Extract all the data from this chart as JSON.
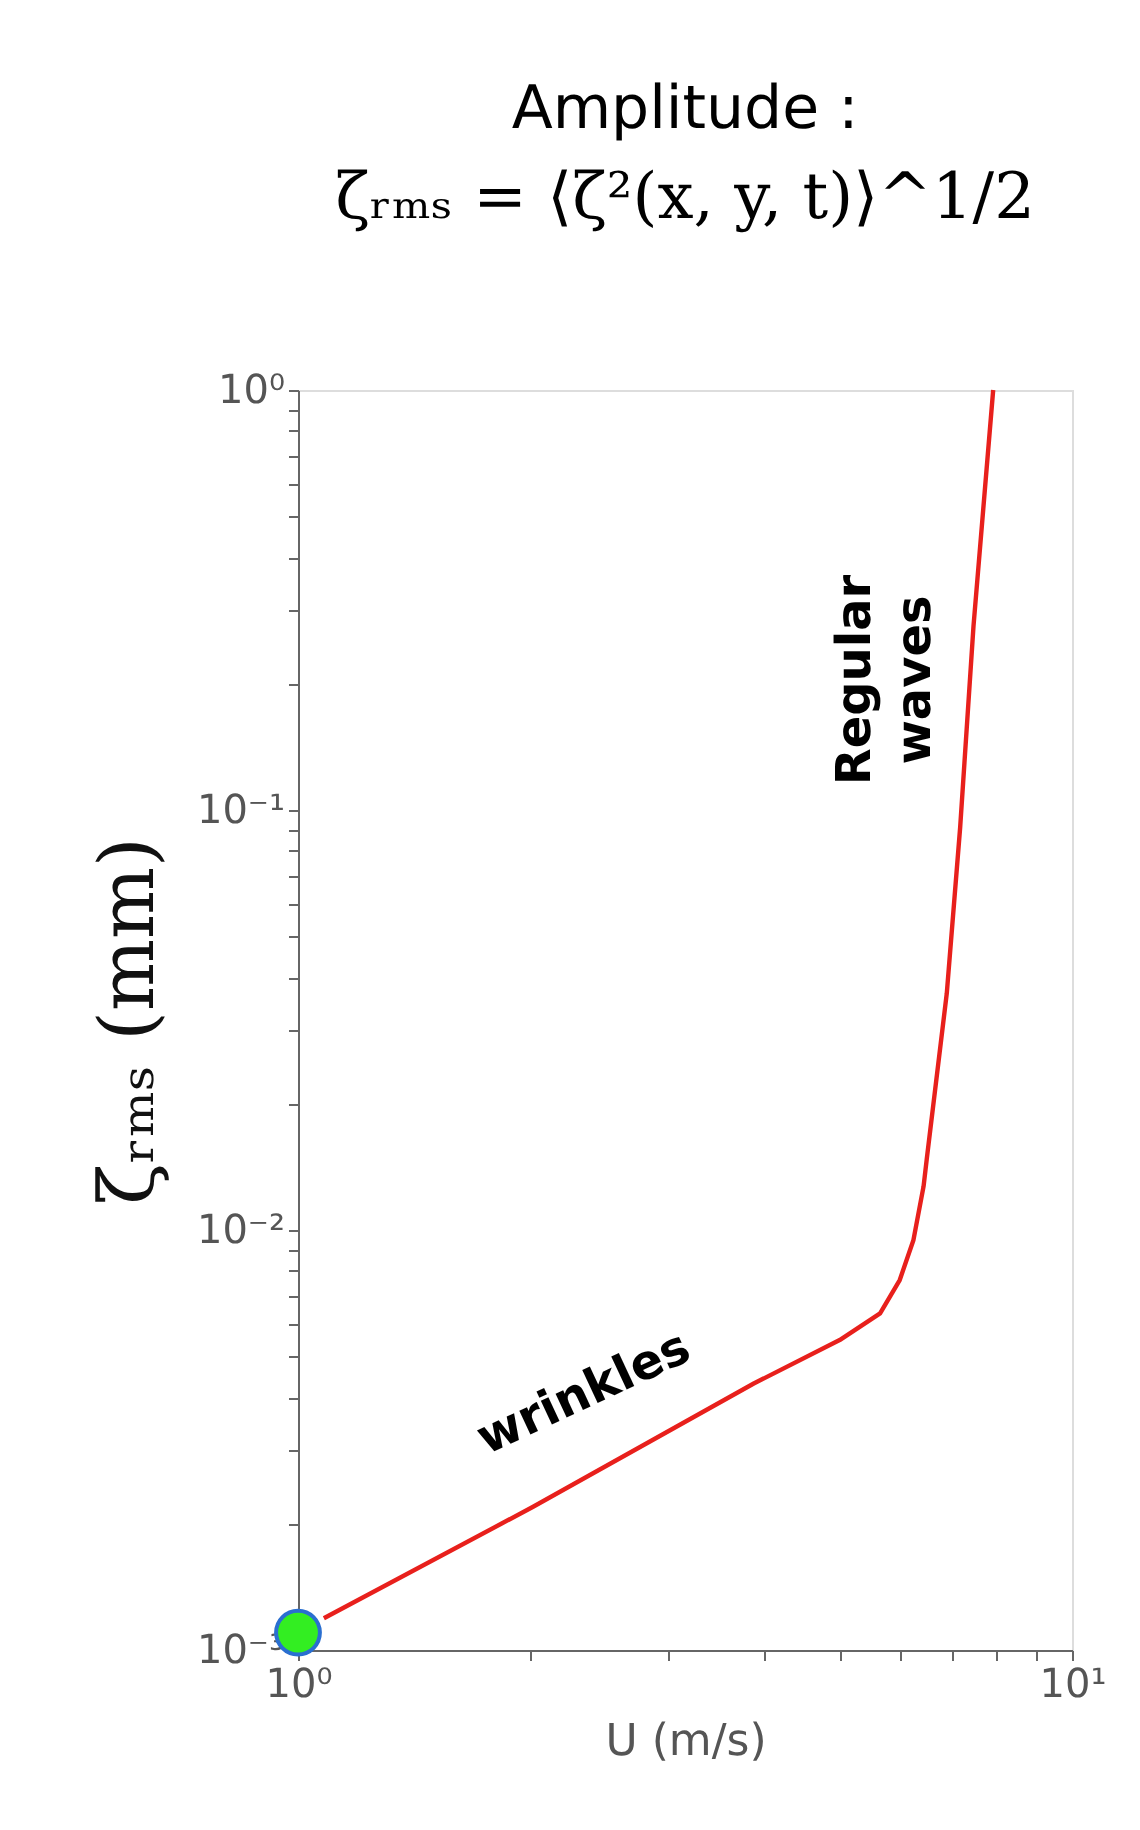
{
  "chart_data": {
    "type": "line",
    "title": "Amplitude :",
    "subtitle": "ζᵣₘₛ = ⟨ζ²(x, y, t)⟩^1/2",
    "xlabel": "U (m/s)",
    "ylabel": "ζᵣₘₛ (mm)",
    "log": "xy",
    "grid": false,
    "xlim": [
      1,
      10
    ],
    "ylim": [
      0.001,
      1
    ],
    "xticks": [
      {
        "value": 1,
        "label": "10⁰"
      },
      {
        "value": 2,
        "label": null
      },
      {
        "value": 3,
        "label": null
      },
      {
        "value": 4,
        "label": null
      },
      {
        "value": 5,
        "label": null
      },
      {
        "value": 6,
        "label": null
      },
      {
        "value": 7,
        "label": null
      },
      {
        "value": 8,
        "label": null
      },
      {
        "value": 9,
        "label": null
      },
      {
        "value": 10,
        "label": "10¹"
      }
    ],
    "yticks": [
      {
        "value": 0.001,
        "label": "10⁻³"
      },
      {
        "value": 0.002,
        "label": null
      },
      {
        "value": 0.003,
        "label": null
      },
      {
        "value": 0.004,
        "label": null
      },
      {
        "value": 0.005,
        "label": null
      },
      {
        "value": 0.006,
        "label": null
      },
      {
        "value": 0.007,
        "label": null
      },
      {
        "value": 0.008,
        "label": null
      },
      {
        "value": 0.009,
        "label": null
      },
      {
        "value": 0.01,
        "label": "10⁻²"
      },
      {
        "value": 0.02,
        "label": null
      },
      {
        "value": 0.03,
        "label": null
      },
      {
        "value": 0.04,
        "label": null
      },
      {
        "value": 0.05,
        "label": null
      },
      {
        "value": 0.06,
        "label": null
      },
      {
        "value": 0.07,
        "label": null
      },
      {
        "value": 0.08,
        "label": null
      },
      {
        "value": 0.09,
        "label": null
      },
      {
        "value": 0.1,
        "label": "10⁻¹"
      },
      {
        "value": 0.2,
        "label": null
      },
      {
        "value": 0.3,
        "label": null
      },
      {
        "value": 0.4,
        "label": null
      },
      {
        "value": 0.5,
        "label": null
      },
      {
        "value": 0.6,
        "label": null
      },
      {
        "value": 0.7,
        "label": null
      },
      {
        "value": 0.8,
        "label": null
      },
      {
        "value": 0.9,
        "label": null
      },
      {
        "value": 1,
        "label": "10⁰"
      }
    ],
    "series": [
      {
        "type": "line",
        "color": "#e8201c",
        "marker": "none",
        "x": [
          1.08,
          2.01,
          3.88,
          5.01,
          5.65,
          5.99,
          6.24,
          6.43,
          6.49,
          6.89,
          7.17,
          7.46,
          7.91
        ],
        "values": [
          0.00119,
          0.00219,
          0.00431,
          0.00547,
          0.00633,
          0.0076,
          0.00947,
          0.0127,
          0.0147,
          0.0366,
          0.091,
          0.274,
          1.0
        ]
      },
      {
        "type": "scatter",
        "color": "#33ee22",
        "marker": "circle",
        "x": [
          1
        ],
        "values": [
          0.0011
        ]
      }
    ],
    "annotations": [
      "wrinkles",
      "Regular waves"
    ]
  }
}
